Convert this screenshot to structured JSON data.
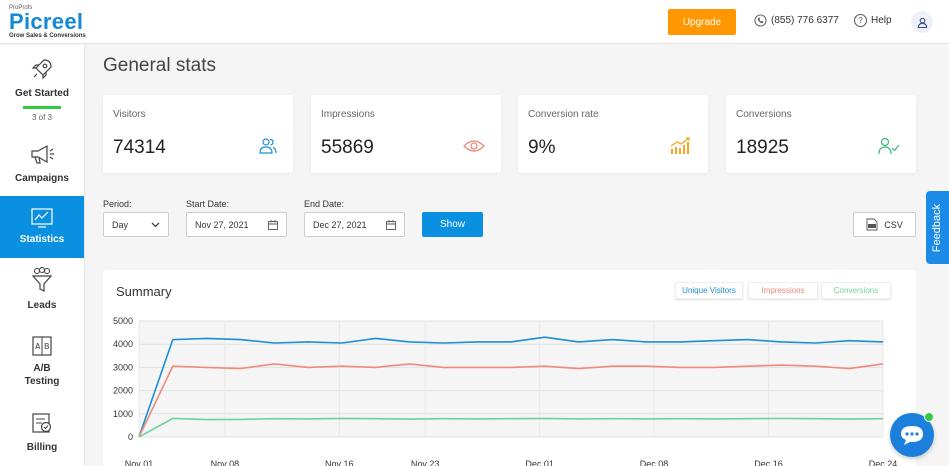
{
  "header": {
    "brand_small": "ProProfs",
    "brand": "Picreel",
    "tagline": "Grow Sales & Conversions",
    "upgrade_label": "Upgrade",
    "phone": "(855) 776 6377",
    "help_label": "Help"
  },
  "sidebar": {
    "items": [
      {
        "label": "Get Started",
        "progress": "3 of 3"
      },
      {
        "label": "Campaigns"
      },
      {
        "label": "Statistics"
      },
      {
        "label": "Leads"
      },
      {
        "label": "A/B Testing"
      },
      {
        "label": "Billing"
      }
    ]
  },
  "main": {
    "title": "General stats",
    "cards": [
      {
        "label": "Visitors",
        "value": "74314",
        "icon": "users-icon",
        "color": "#1a8fd4"
      },
      {
        "label": "Impressions",
        "value": "55869",
        "icon": "eye-icon",
        "color": "#f08a7a"
      },
      {
        "label": "Conversion rate",
        "value": "9%",
        "icon": "bar-chart-icon",
        "color": "#f5a623"
      },
      {
        "label": "Conversions",
        "value": "18925",
        "icon": "user-check-icon",
        "color": "#3cb878"
      }
    ],
    "filters": {
      "period_label": "Period:",
      "period_value": "Day",
      "start_label": "Start Date:",
      "start_value": "Nov 27, 2021",
      "end_label": "End Date:",
      "end_value": "Dec 27, 2021",
      "show_label": "Show",
      "csv_label": "CSV"
    },
    "summary": {
      "title": "Summary",
      "legend": [
        {
          "label": "Unique Visitors",
          "color": "#1a8fd4"
        },
        {
          "label": "Impressions",
          "color": "#f08a7a"
        },
        {
          "label": "Conversions",
          "color": "#6fd19c"
        }
      ]
    }
  },
  "feedback_label": "Feedback",
  "chart_data": {
    "type": "line",
    "ylim": [
      0,
      5000
    ],
    "yticks": [
      0,
      1000,
      2000,
      3000,
      4000,
      5000
    ],
    "xtick_labels": [
      "Nov 01",
      "Nov 08",
      "Nov 16",
      "Nov 23",
      "Dec 01",
      "Dec 08",
      "Dec 16",
      "Dec 24"
    ],
    "xtick_indices": [
      0,
      3,
      7,
      10,
      14,
      18,
      22,
      26
    ],
    "series": [
      {
        "name": "Unique Visitors",
        "color": "#1a8fd4",
        "values": [
          0,
          4200,
          4250,
          4200,
          4050,
          4100,
          4050,
          4250,
          4100,
          4050,
          4100,
          4100,
          4300,
          4100,
          4200,
          4100,
          4100,
          4150,
          4200,
          4100,
          4050,
          4150,
          4100
        ]
      },
      {
        "name": "Impressions",
        "color": "#f08a7a",
        "values": [
          0,
          3050,
          3000,
          2950,
          3150,
          3000,
          3050,
          3000,
          3150,
          3000,
          3000,
          3000,
          3050,
          2950,
          3050,
          3050,
          3000,
          3000,
          3050,
          3100,
          3050,
          2950,
          3150
        ]
      },
      {
        "name": "Conversions",
        "color": "#6fd19c",
        "values": [
          0,
          800,
          750,
          760,
          790,
          780,
          800,
          790,
          770,
          790,
          780,
          790,
          800,
          780,
          790,
          780,
          790,
          780,
          790,
          800,
          790,
          770,
          790
        ]
      }
    ]
  }
}
